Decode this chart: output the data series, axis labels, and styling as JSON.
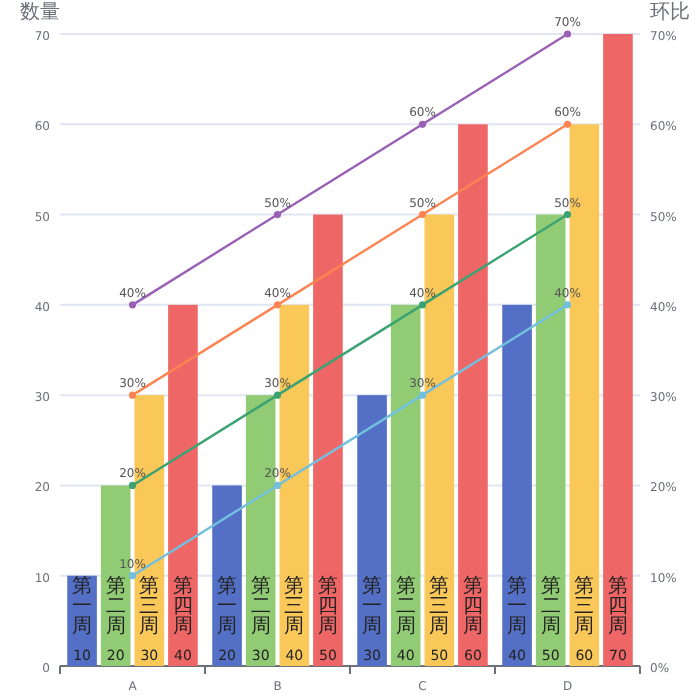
{
  "chart_data": {
    "type": "bar",
    "ylabel": "数量",
    "y2label": "环比",
    "categories": [
      "A",
      "B",
      "C",
      "D"
    ],
    "ylim": [
      0,
      70
    ],
    "yticks": [
      0,
      10,
      20,
      30,
      40,
      50,
      60,
      70
    ],
    "y2lim": [
      0,
      70
    ],
    "y2ticks": [
      {
        "value": 0,
        "label": "0%"
      },
      {
        "value": 10,
        "label": "10%"
      },
      {
        "value": 20,
        "label": "20%"
      },
      {
        "value": 30,
        "label": "30%"
      },
      {
        "value": 40,
        "label": "40%"
      },
      {
        "value": 50,
        "label": "50%"
      },
      {
        "value": 60,
        "label": "60%"
      },
      {
        "value": 70,
        "label": "70%"
      }
    ],
    "grid": "y",
    "series": [
      {
        "name": "第一周",
        "color": "#5470c6",
        "values": [
          10,
          20,
          30,
          40
        ],
        "value_labels": [
          "10",
          "20",
          "30",
          "40"
        ]
      },
      {
        "name": "第二周",
        "color": "#91cc75",
        "values": [
          20,
          30,
          40,
          50
        ],
        "value_labels": [
          "20",
          "30",
          "40",
          "50"
        ]
      },
      {
        "name": "第三周",
        "color": "#fac858",
        "values": [
          30,
          40,
          50,
          60
        ],
        "value_labels": [
          "30",
          "40",
          "50",
          "60"
        ]
      },
      {
        "name": "第四周",
        "color": "#ee6666",
        "values": [
          40,
          50,
          60,
          70
        ],
        "value_labels": [
          "40",
          "50",
          "60",
          "70"
        ]
      },
      {
        "type": "line",
        "color": "#73c0de",
        "marker": "circle",
        "values": [
          10,
          20,
          30,
          40
        ],
        "value_labels": [
          "10%",
          "20%",
          "30%",
          "40%"
        ]
      },
      {
        "type": "line",
        "color": "#3ba272",
        "marker": "circle",
        "values": [
          20,
          30,
          40,
          50
        ],
        "value_labels": [
          "20%",
          "30%",
          "40%",
          "50%"
        ]
      },
      {
        "type": "line",
        "color": "#fc8452",
        "marker": "circle",
        "values": [
          30,
          40,
          50,
          60
        ],
        "value_labels": [
          "30%",
          "40%",
          "50%",
          "60%"
        ]
      },
      {
        "type": "line",
        "color": "#9a60b4",
        "marker": "circle",
        "values": [
          40,
          50,
          60,
          70
        ],
        "value_labels": [
          "40%",
          "50%",
          "60%",
          "70%"
        ]
      }
    ]
  }
}
